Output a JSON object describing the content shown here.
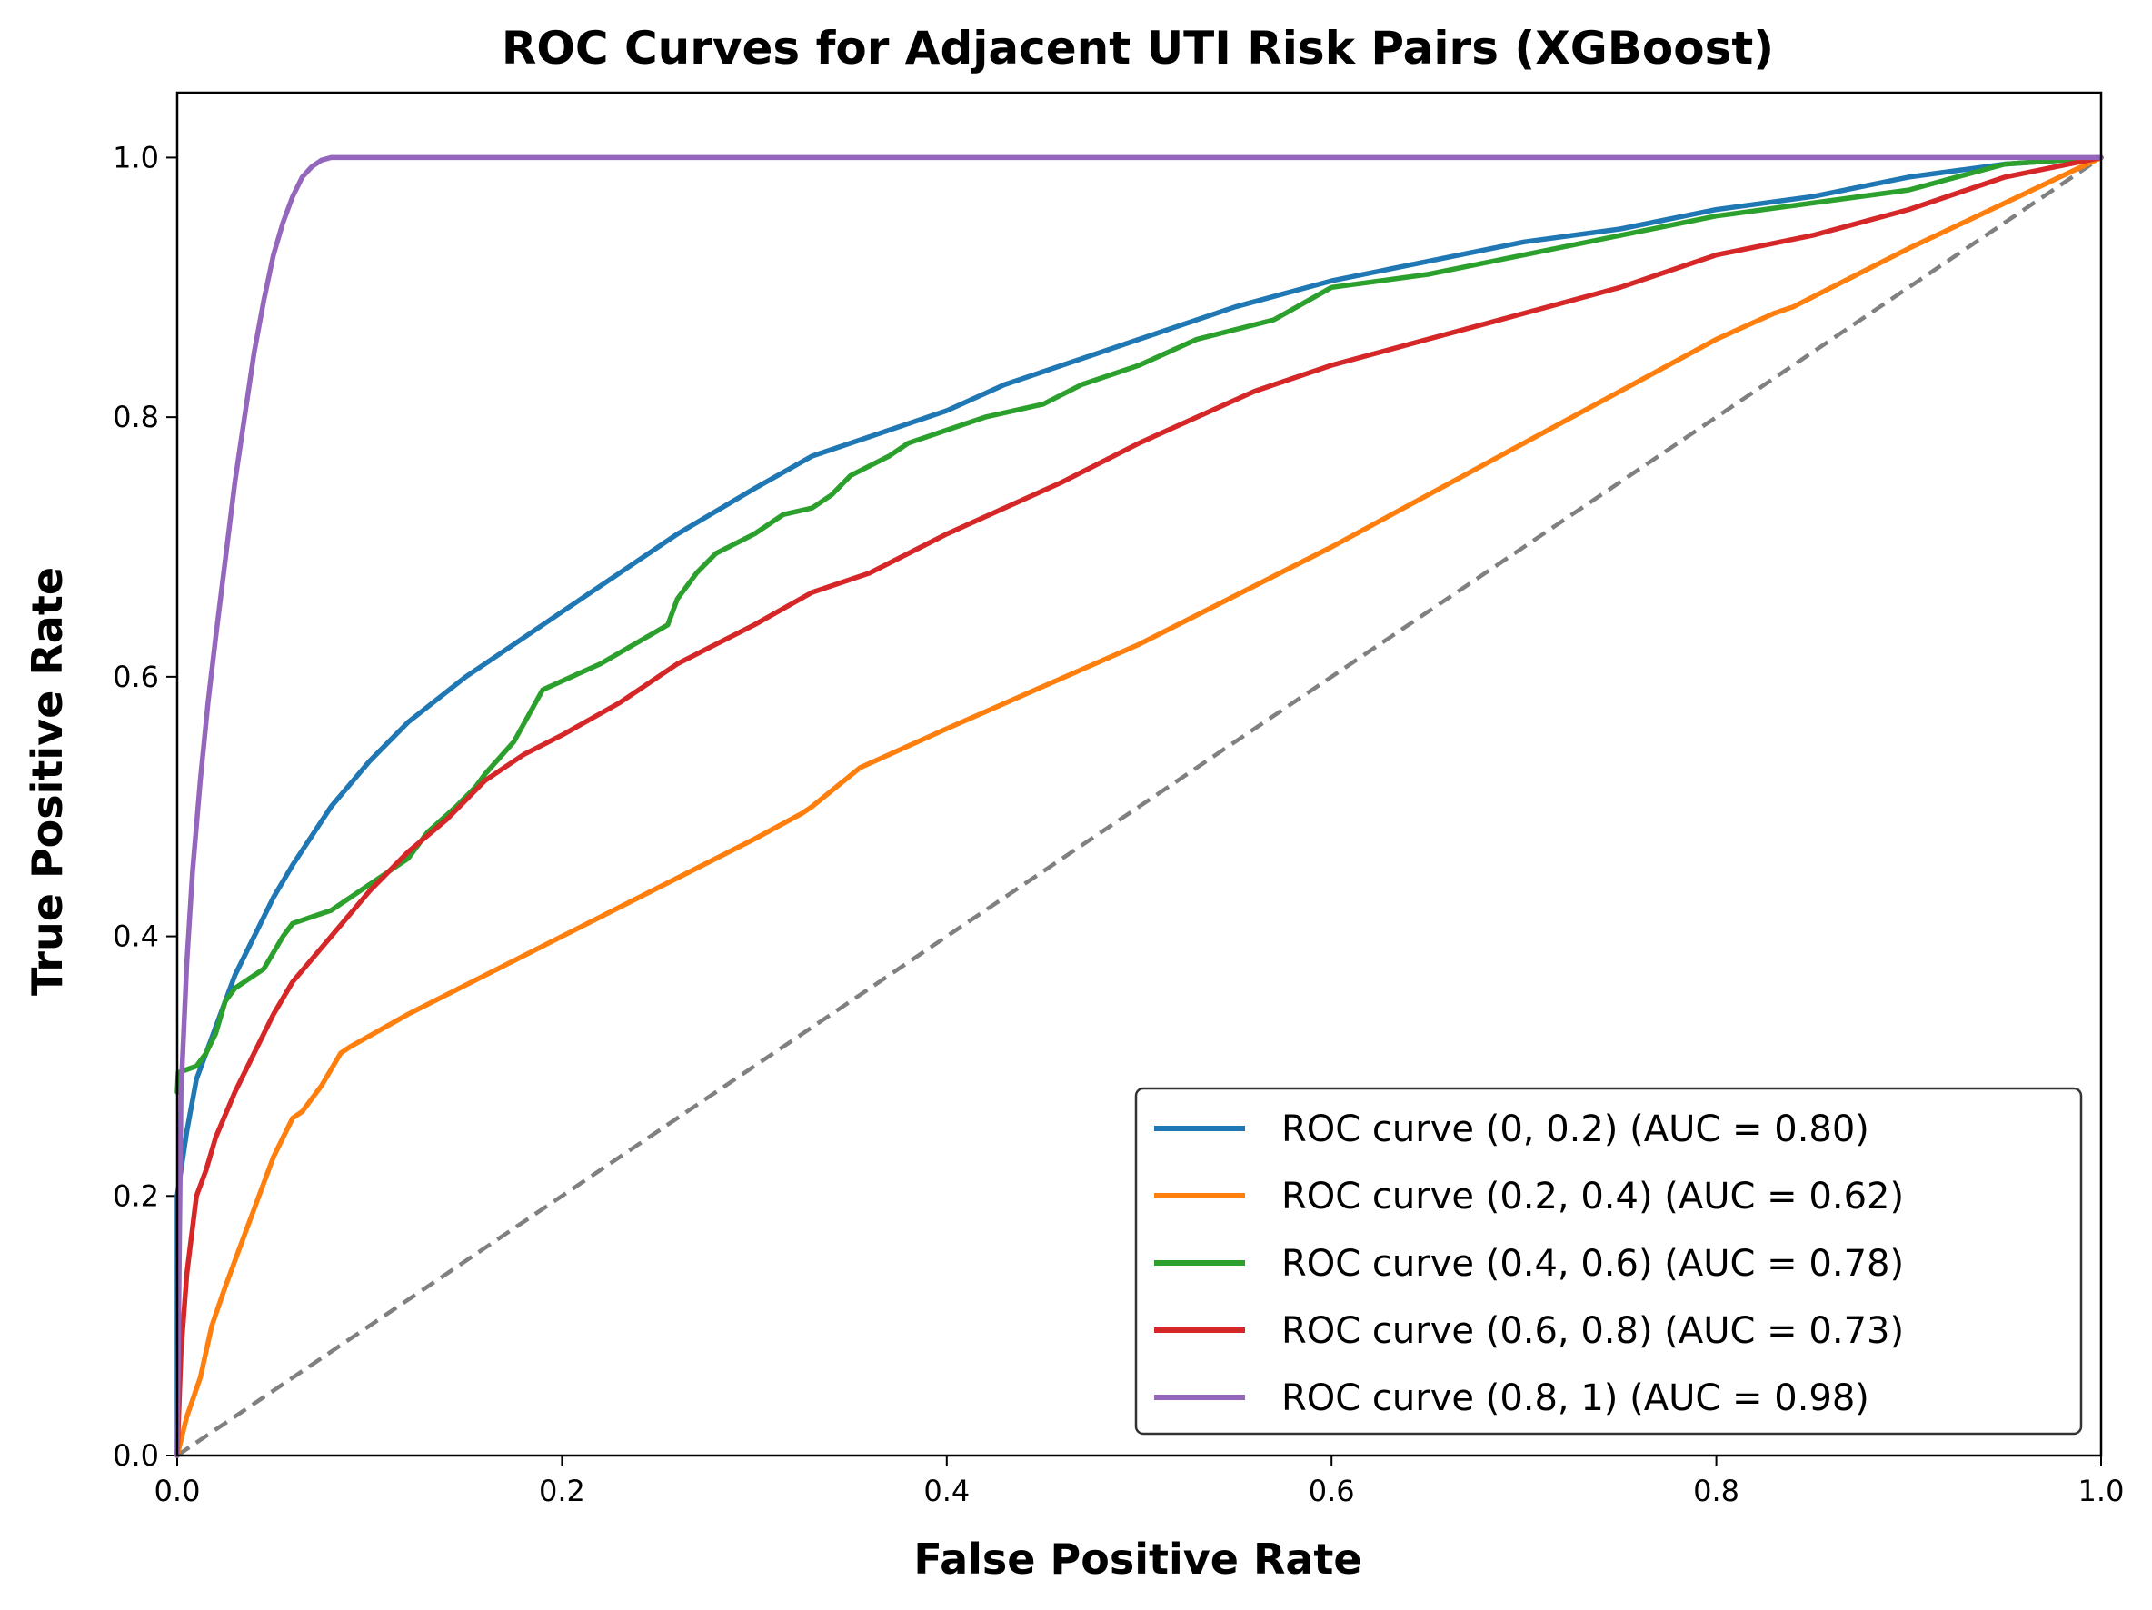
{
  "chart_data": {
    "type": "line",
    "title": "ROC Curves for Adjacent UTI Risk Pairs (XGBoost)",
    "xlabel": "False Positive Rate",
    "ylabel": "True Positive Rate",
    "xlim": [
      0.0,
      1.0
    ],
    "ylim": [
      0.0,
      1.05
    ],
    "xticks": [
      0.0,
      0.2,
      0.4,
      0.6,
      0.8,
      1.0
    ],
    "yticks": [
      0.0,
      0.2,
      0.4,
      0.6,
      0.8,
      1.0
    ],
    "xtick_labels": [
      "0.0",
      "0.2",
      "0.4",
      "0.6",
      "0.8",
      "1.0"
    ],
    "ytick_labels": [
      "0.0",
      "0.2",
      "0.4",
      "0.6",
      "0.8",
      "1.0"
    ],
    "legend_position": "lower-right",
    "series": [
      {
        "name": "ROC curve (0, 0.2) (AUC = 0.80)",
        "color": "#1f77b4",
        "x": [
          0,
          0,
          0.005,
          0.01,
          0.02,
          0.03,
          0.04,
          0.05,
          0.06,
          0.08,
          0.1,
          0.12,
          0.15,
          0.18,
          0.2,
          0.23,
          0.26,
          0.3,
          0.33,
          0.36,
          0.4,
          0.43,
          0.46,
          0.5,
          0.55,
          0.6,
          0.65,
          0.7,
          0.75,
          0.8,
          0.85,
          0.9,
          0.95,
          1.0
        ],
        "y": [
          0,
          0.2,
          0.25,
          0.29,
          0.33,
          0.37,
          0.4,
          0.43,
          0.455,
          0.5,
          0.535,
          0.565,
          0.6,
          0.63,
          0.65,
          0.68,
          0.71,
          0.745,
          0.77,
          0.785,
          0.805,
          0.825,
          0.84,
          0.86,
          0.885,
          0.905,
          0.92,
          0.935,
          0.945,
          0.96,
          0.97,
          0.985,
          0.995,
          1.0
        ]
      },
      {
        "name": "ROC curve (0.2, 0.4) (AUC = 0.62)",
        "color": "#ff7f0e",
        "x": [
          0,
          0.005,
          0.012,
          0.018,
          0.025,
          0.035,
          0.05,
          0.06,
          0.065,
          0.075,
          0.085,
          0.09,
          0.12,
          0.2,
          0.3,
          0.325,
          0.33,
          0.355,
          0.4,
          0.5,
          0.6,
          0.7,
          0.8,
          0.83,
          0.84,
          0.9,
          1.0
        ],
        "y": [
          0,
          0.03,
          0.06,
          0.1,
          0.13,
          0.17,
          0.23,
          0.26,
          0.265,
          0.285,
          0.31,
          0.315,
          0.34,
          0.4,
          0.475,
          0.495,
          0.5,
          0.53,
          0.56,
          0.625,
          0.7,
          0.78,
          0.86,
          0.88,
          0.885,
          0.93,
          1.0
        ]
      },
      {
        "name": "ROC curve (0.4, 0.6) (AUC = 0.78)",
        "color": "#2ca02c",
        "x": [
          0,
          0.0005,
          0.01,
          0.015,
          0.02,
          0.025,
          0.03,
          0.045,
          0.055,
          0.06,
          0.07,
          0.08,
          0.1,
          0.12,
          0.13,
          0.145,
          0.155,
          0.16,
          0.175,
          0.19,
          0.22,
          0.255,
          0.26,
          0.27,
          0.28,
          0.3,
          0.315,
          0.33,
          0.34,
          0.35,
          0.37,
          0.38,
          0.4,
          0.42,
          0.45,
          0.47,
          0.5,
          0.53,
          0.57,
          0.6,
          0.65,
          0.7,
          0.75,
          0.8,
          0.85,
          0.9,
          0.95,
          1.0
        ],
        "y": [
          0.28,
          0.295,
          0.3,
          0.31,
          0.325,
          0.35,
          0.36,
          0.375,
          0.4,
          0.41,
          0.415,
          0.42,
          0.44,
          0.46,
          0.48,
          0.5,
          0.515,
          0.525,
          0.55,
          0.59,
          0.61,
          0.64,
          0.66,
          0.68,
          0.695,
          0.71,
          0.725,
          0.73,
          0.74,
          0.755,
          0.77,
          0.78,
          0.79,
          0.8,
          0.81,
          0.825,
          0.84,
          0.86,
          0.875,
          0.9,
          0.91,
          0.925,
          0.94,
          0.955,
          0.965,
          0.975,
          0.995,
          1.0
        ]
      },
      {
        "name": "ROC curve (0.6, 0.8) (AUC = 0.73)",
        "color": "#d62728",
        "x": [
          0,
          0.002,
          0.005,
          0.01,
          0.015,
          0.02,
          0.03,
          0.04,
          0.05,
          0.06,
          0.08,
          0.1,
          0.12,
          0.14,
          0.16,
          0.18,
          0.2,
          0.23,
          0.26,
          0.28,
          0.3,
          0.33,
          0.36,
          0.4,
          0.43,
          0.46,
          0.5,
          0.53,
          0.56,
          0.6,
          0.65,
          0.7,
          0.75,
          0.8,
          0.85,
          0.9,
          0.95,
          1.0
        ],
        "y": [
          0,
          0.08,
          0.14,
          0.2,
          0.22,
          0.245,
          0.28,
          0.31,
          0.34,
          0.365,
          0.4,
          0.435,
          0.465,
          0.49,
          0.52,
          0.54,
          0.555,
          0.58,
          0.61,
          0.625,
          0.64,
          0.665,
          0.68,
          0.71,
          0.73,
          0.75,
          0.78,
          0.8,
          0.82,
          0.84,
          0.86,
          0.88,
          0.9,
          0.925,
          0.94,
          0.96,
          0.985,
          1.0
        ]
      },
      {
        "name": "ROC curve (0.8, 1) (AUC = 0.98)",
        "color": "#9467bd",
        "x": [
          0,
          0.002,
          0.005,
          0.008,
          0.012,
          0.016,
          0.02,
          0.025,
          0.03,
          0.035,
          0.04,
          0.045,
          0.05,
          0.055,
          0.06,
          0.065,
          0.07,
          0.075,
          0.08,
          0.2,
          0.4,
          0.6,
          0.8,
          1.0
        ],
        "y": [
          0,
          0.28,
          0.38,
          0.45,
          0.52,
          0.58,
          0.63,
          0.69,
          0.75,
          0.8,
          0.85,
          0.89,
          0.925,
          0.95,
          0.97,
          0.985,
          0.993,
          0.998,
          1.0,
          1.0,
          1.0,
          1.0,
          1.0,
          1.0
        ]
      }
    ],
    "reference_line": {
      "x": [
        0,
        1
      ],
      "y": [
        0,
        1
      ],
      "color": "#808080",
      "style": "dashed"
    }
  }
}
